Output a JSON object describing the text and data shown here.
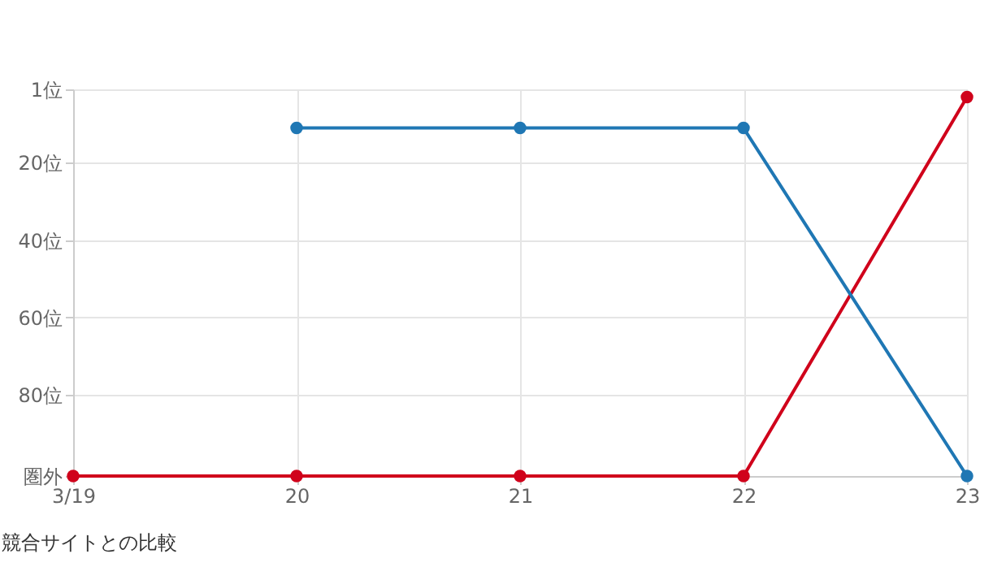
{
  "chart_data": {
    "type": "line",
    "categories": [
      "3/19",
      "20",
      "21",
      "22",
      "23"
    ],
    "series": [
      {
        "color": "#d0021b",
        "values": [
          101,
          101,
          101,
          101,
          3
        ]
      },
      {
        "color": "#1f77b4",
        "values": [
          null,
          11,
          11,
          11,
          101
        ]
      }
    ],
    "ylim": [
      101,
      1
    ],
    "yticks": [
      {
        "value": 1,
        "label": "1位"
      },
      {
        "value": 20,
        "label": "20位"
      },
      {
        "value": 40,
        "label": "40位"
      },
      {
        "value": 60,
        "label": "60位"
      },
      {
        "value": 80,
        "label": "80位"
      },
      {
        "value": 101,
        "label": "圏外"
      }
    ],
    "grid": true,
    "marker": "circle",
    "line_style": "solid",
    "legend": false,
    "annotations": [
      "競合サイトとの比較"
    ]
  }
}
